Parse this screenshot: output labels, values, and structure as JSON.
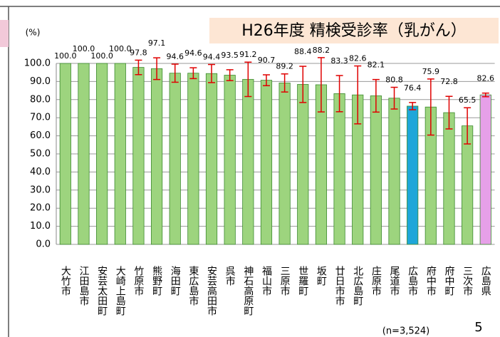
{
  "chart_data": {
    "type": "bar",
    "title": "H26年度 精検受診率（乳がん）",
    "y_label": "(%)",
    "note": "(n=3,524)",
    "page_number": "5",
    "categories": [
      "大竹市",
      "江田島市",
      "安芸太田町",
      "大崎上島町",
      "竹原市",
      "熊野町",
      "海田町",
      "東広島市",
      "安芸高田市",
      "呉市",
      "神石高原町",
      "福山市",
      "三原市",
      "世羅町",
      "坂町",
      "廿日市市",
      "北広島町",
      "庄原市",
      "尾道市",
      "広島市",
      "府中市",
      "府中町",
      "三次市",
      "広島県"
    ],
    "values": [
      100,
      100,
      100,
      100,
      97.8,
      97.1,
      94.6,
      94.6,
      94.4,
      93.5,
      91.2,
      90.7,
      89.2,
      88.4,
      88.2,
      83.3,
      82.6,
      82.1,
      80.8,
      76.4,
      75.9,
      72.8,
      65.5,
      82.6
    ],
    "value_labels": [
      "100.0",
      "100.0",
      "100.0",
      "100.0",
      "97.8",
      "97.1",
      "94.6",
      "94.6",
      "94.4",
      "93.5",
      "91.2",
      "90.7",
      "89.2",
      "88.4",
      "88.2",
      "83.3",
      "82.6",
      "82.1",
      "80.8",
      "76.4",
      "75.9",
      "72.8",
      "65.5",
      "82.6"
    ],
    "errors": [
      0,
      0,
      0,
      0,
      4,
      6,
      5,
      3,
      5,
      3,
      9.5,
      3,
      5,
      10,
      15,
      10,
      16,
      9,
      6,
      2,
      15.5,
      9,
      10,
      1
    ],
    "colors": [
      "#9dd47e",
      "#9dd47e",
      "#9dd47e",
      "#9dd47e",
      "#9dd47e",
      "#9dd47e",
      "#9dd47e",
      "#9dd47e",
      "#9dd47e",
      "#9dd47e",
      "#9dd47e",
      "#9dd47e",
      "#9dd47e",
      "#9dd47e",
      "#9dd47e",
      "#9dd47e",
      "#9dd47e",
      "#9dd47e",
      "#9dd47e",
      "#1ea6d9",
      "#9dd47e",
      "#9dd47e",
      "#9dd47e",
      "#e6a0e8"
    ],
    "error_color": "#e00000",
    "ylim": [
      0,
      100
    ],
    "yticks": [
      {
        "value": 0,
        "label": "0.0"
      },
      {
        "value": 10,
        "label": "10.0"
      },
      {
        "value": 20,
        "label": "20.0"
      },
      {
        "value": 30,
        "label": "30.0"
      },
      {
        "value": 40,
        "label": "40.0"
      },
      {
        "value": 50,
        "label": "50.0"
      },
      {
        "value": 60,
        "label": "60.0"
      },
      {
        "value": 70,
        "label": "70.0"
      },
      {
        "value": 80,
        "label": "80.0"
      },
      {
        "value": 90,
        "label": "90.0"
      },
      {
        "value": 100,
        "label": "100.0"
      }
    ],
    "grid": true
  }
}
